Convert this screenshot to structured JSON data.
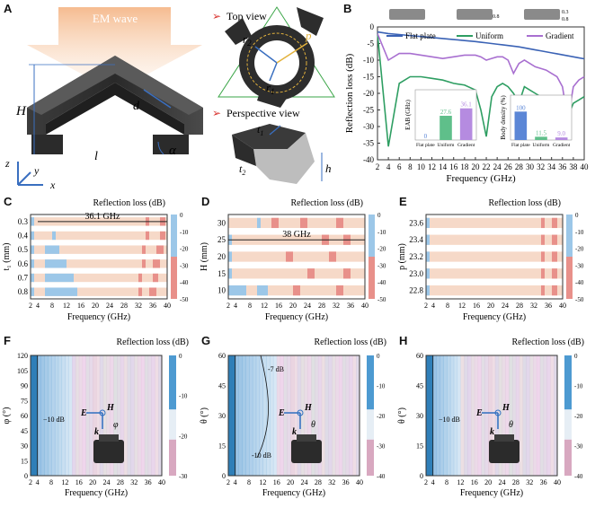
{
  "panels": {
    "A": {
      "letter": "A",
      "wave_label": "EM wave",
      "top_view": "Top view",
      "perspective_view": "Perspective view",
      "sym_H": "H",
      "sym_d": "d",
      "sym_l": "l",
      "sym_c": "c",
      "sym_alpha": "α",
      "sym_r2": "r",
      "sym_r2_sub": "2",
      "sym_r1": "r",
      "sym_r1_sub": "1",
      "sym_p": "p",
      "sym_t1": "t",
      "sym_t1_sub": "1",
      "sym_t2": "t",
      "sym_t2_sub": "2",
      "sym_h": "h",
      "axis_x": "x",
      "axis_y": "y",
      "axis_z": "z"
    },
    "B": {
      "letter": "B",
      "ylabel": "Reflection loss (dB)",
      "xlabel": "Frequency (GHz)",
      "legend": [
        "Flat plate",
        "Uniform",
        "Gradient"
      ],
      "thumb_labels": [
        "0.8",
        "0.3",
        "0.8"
      ],
      "inset1_ylabel": "EAB (GHz)",
      "inset2_ylabel": "Body density (%)",
      "inset_categories": [
        "Flat plate",
        "Uniform",
        "Gradient"
      ]
    },
    "C": {
      "letter": "C",
      "title": "Reflection loss (dB)",
      "ylabel": "t₁ (mm)",
      "xlabel": "Frequency (GHz)",
      "annotation": "36.1 GHz"
    },
    "D": {
      "letter": "D",
      "title": "Reflection loss (dB)",
      "ylabel": "H (mm)",
      "xlabel": "Frequency (GHz)",
      "annotation": "38 GHz"
    },
    "E": {
      "letter": "E",
      "title": "Reflection loss (dB)",
      "ylabel": "p (mm)",
      "xlabel": "Frequency (GHz)"
    },
    "F": {
      "letter": "F",
      "title": "Reflection loss (dB)",
      "ylabel": "φ (°)",
      "xlabel": "Frequency (GHz)",
      "contour": "−10 dB",
      "vec_E": "E",
      "vec_H": "H",
      "vec_k": "k",
      "vec_angle": "φ"
    },
    "G": {
      "letter": "G",
      "title": "Reflection loss (dB)",
      "ylabel": "θ (°)",
      "xlabel": "Frequency (GHz)",
      "contour1": "-7 dB",
      "contour2": "-10 dB",
      "vec_E": "E",
      "vec_H": "H",
      "vec_k": "k",
      "vec_angle": "θ"
    },
    "H": {
      "letter": "H",
      "title": "Reflection loss (dB)",
      "ylabel": "θ (°)",
      "xlabel": "Frequency (GHz)",
      "contour": "−10 dB",
      "vec_E": "E",
      "vec_H": "H",
      "vec_k": "k",
      "vec_angle": "θ"
    }
  },
  "chart_data": [
    {
      "type": "line",
      "panel": "B",
      "title": "",
      "xlabel": "Frequency (GHz)",
      "ylabel": "Reflection loss (dB)",
      "xlim": [
        2,
        40
      ],
      "ylim": [
        -40,
        0
      ],
      "x": [
        2,
        4,
        6,
        8,
        10,
        12,
        14,
        16,
        18,
        20,
        21,
        22,
        23,
        24,
        25,
        26,
        27,
        28,
        29,
        30,
        31,
        32,
        33,
        34,
        35,
        36,
        37,
        38,
        39,
        40
      ],
      "series": [
        {
          "name": "Flat plate",
          "color": "#3a62b5",
          "values": [
            -1.5,
            -2.0,
            -2.3,
            -2.6,
            -2.9,
            -3.2,
            -3.5,
            -3.8,
            -4.1,
            -4.4,
            -4.6,
            -4.8,
            -5.0,
            -5.2,
            -5.4,
            -5.6,
            -5.8,
            -6.0,
            -6.3,
            -6.6,
            -6.9,
            -7.2,
            -7.5,
            -7.8,
            -8.1,
            -8.4,
            -8.7,
            -9.0,
            -9.3,
            -9.6
          ]
        },
        {
          "name": "Uniform",
          "color": "#2e9e62",
          "values": [
            -2,
            -36,
            -17,
            -15,
            -15,
            -15.5,
            -16,
            -17,
            -17.5,
            -19,
            -25,
            -33,
            -21,
            -18,
            -17,
            -18,
            -20,
            -23,
            -18,
            -19,
            -20,
            -21,
            -22,
            -23,
            -25,
            -32,
            -27,
            -23,
            -22,
            -21
          ]
        },
        {
          "name": "Gradient",
          "color": "#a86fd0",
          "values": [
            -2,
            -10,
            -8,
            -8,
            -8.5,
            -9,
            -9.5,
            -9,
            -8.5,
            -8.5,
            -9,
            -10,
            -9.5,
            -9,
            -9,
            -10,
            -14,
            -11,
            -10,
            -11,
            -12,
            -12.5,
            -13,
            -14,
            -15,
            -18,
            -28,
            -18,
            -16,
            -15
          ]
        }
      ],
      "x_ticks": [
        2,
        4,
        6,
        8,
        10,
        12,
        14,
        16,
        18,
        20,
        22,
        24,
        26,
        28,
        30,
        32,
        34,
        36,
        38,
        40
      ],
      "y_ticks": [
        0,
        -5,
        -10,
        -15,
        -20,
        -25,
        -30,
        -35,
        -40
      ]
    },
    {
      "type": "bar",
      "panel": "B-inset-EAB",
      "ylabel": "EAB (GHz)",
      "categories": [
        "Flat plate",
        "Uniform",
        "Gradient"
      ],
      "values": [
        0,
        27.6,
        36.1
      ],
      "value_labels": [
        "0",
        "27.6",
        "36.1"
      ],
      "colors": [
        "#5b86d6",
        "#5fbf8a",
        "#b58be0"
      ],
      "ylim": [
        0,
        45
      ]
    },
    {
      "type": "bar",
      "panel": "B-inset-density",
      "ylabel": "Body density (%)",
      "categories": [
        "Flat plate",
        "Uniform",
        "Gradient"
      ],
      "values": [
        100,
        11.5,
        9.0
      ],
      "value_labels": [
        "100",
        "11.5",
        "9.0"
      ],
      "colors": [
        "#5b86d6",
        "#5fbf8a",
        "#b58be0"
      ],
      "ylim": [
        0,
        120
      ]
    },
    {
      "type": "heatmap",
      "panel": "C",
      "xlabel": "Frequency (GHz)",
      "ylabel": "t1 (mm)",
      "y_categories": [
        "0.3",
        "0.4",
        "0.5",
        "0.6",
        "0.7",
        "0.8"
      ],
      "x_ticks": [
        2,
        4,
        8,
        12,
        16,
        20,
        24,
        28,
        32,
        36,
        40
      ],
      "colorbar_ticks": [
        0,
        -10,
        -20,
        -30,
        -40,
        -50
      ],
      "annotation": {
        "text": "36.1 GHz",
        "from": 4,
        "to": 40,
        "row": "0.3"
      },
      "blue_spans": [
        [
          [
            2,
            3
          ]
        ],
        [
          [
            2,
            3
          ],
          [
            8,
            9
          ]
        ],
        [
          [
            2,
            3
          ],
          [
            6,
            10
          ]
        ],
        [
          [
            2,
            3
          ],
          [
            6,
            12
          ]
        ],
        [
          [
            2,
            3
          ],
          [
            6,
            14
          ]
        ],
        [
          [
            2,
            3
          ],
          [
            6,
            15
          ]
        ]
      ],
      "red_spans": [
        [
          [
            34,
            35
          ],
          [
            38,
            39.5
          ]
        ],
        [
          [
            34,
            35
          ],
          [
            38,
            39.5
          ]
        ],
        [
          [
            33,
            34
          ],
          [
            37,
            39
          ]
        ],
        [
          [
            33,
            34
          ],
          [
            36,
            38
          ]
        ],
        [
          [
            32,
            33
          ],
          [
            36,
            37.5
          ]
        ],
        [
          [
            32,
            33
          ],
          [
            35,
            37
          ]
        ]
      ]
    },
    {
      "type": "heatmap",
      "panel": "D",
      "xlabel": "Frequency (GHz)",
      "ylabel": "H (mm)",
      "y_categories": [
        "30",
        "25",
        "20",
        "15",
        "10"
      ],
      "y_ticks": [
        30,
        25,
        20,
        15,
        10
      ],
      "x_ticks": [
        2,
        4,
        8,
        12,
        16,
        20,
        24,
        28,
        32,
        36,
        40
      ],
      "colorbar_ticks": [
        0,
        -10,
        -20,
        -30,
        -40,
        -50
      ],
      "annotation": {
        "text": "38 GHz",
        "from": 2,
        "to": 40,
        "row": "25"
      },
      "blue_spans": [
        [
          [
            10,
            11
          ]
        ],
        [
          [
            2,
            3
          ]
        ],
        [
          [
            2,
            3
          ]
        ],
        [
          [
            2,
            3
          ]
        ],
        [
          [
            2,
            7
          ],
          [
            10,
            13
          ]
        ]
      ],
      "red_spans": [
        [
          [
            14,
            16
          ],
          [
            22,
            24
          ],
          [
            32,
            34
          ]
        ],
        [
          [
            28,
            30
          ],
          [
            34,
            36
          ]
        ],
        [
          [
            18,
            20
          ],
          [
            30,
            32
          ]
        ],
        [
          [
            24,
            26
          ],
          [
            34,
            36
          ]
        ],
        [
          [
            20,
            22
          ],
          [
            32,
            34
          ]
        ]
      ]
    },
    {
      "type": "heatmap",
      "panel": "E",
      "xlabel": "Frequency (GHz)",
      "ylabel": "p (mm)",
      "y_categories": [
        "23.6",
        "23.4",
        "23.2",
        "23.0",
        "22.8"
      ],
      "x_ticks": [
        2,
        4,
        8,
        12,
        16,
        20,
        24,
        28,
        32,
        36,
        40
      ],
      "colorbar_ticks": [
        0,
        -10,
        -20,
        -30,
        -40,
        -50
      ],
      "blue_spans": [
        [
          [
            2,
            3
          ]
        ],
        [
          [
            2,
            3
          ]
        ],
        [
          [
            2,
            3
          ]
        ],
        [
          [
            2,
            3
          ]
        ],
        [
          [
            2,
            3
          ]
        ]
      ],
      "red_spans": [
        [
          [
            34,
            35
          ],
          [
            37,
            38.5
          ]
        ],
        [
          [
            34,
            35
          ],
          [
            37,
            38.5
          ]
        ],
        [
          [
            34,
            35
          ],
          [
            37,
            38.5
          ]
        ],
        [
          [
            34,
            35
          ],
          [
            37,
            38.5
          ]
        ],
        [
          [
            34,
            35
          ],
          [
            37,
            38.5
          ]
        ]
      ]
    },
    {
      "type": "heatmap",
      "panel": "F",
      "xlabel": "Frequency (GHz)",
      "ylabel": "φ (°)",
      "y_ticks": [
        0,
        15,
        30,
        45,
        60,
        75,
        90,
        105,
        120
      ],
      "ylim": [
        0,
        120
      ],
      "x_ticks": [
        2,
        4,
        8,
        12,
        16,
        20,
        24,
        28,
        32,
        36,
        40
      ],
      "colorbar_ticks": [
        0,
        -10,
        -20,
        -30
      ],
      "contour_label": "−10 dB"
    },
    {
      "type": "heatmap",
      "panel": "G",
      "xlabel": "Frequency (GHz)",
      "ylabel": "θ (°)",
      "y_ticks": [
        0,
        15,
        30,
        45,
        60
      ],
      "ylim": [
        0,
        60
      ],
      "x_ticks": [
        2,
        4,
        8,
        12,
        16,
        20,
        24,
        28,
        32,
        36,
        40
      ],
      "colorbar_ticks": [
        0,
        -10,
        -20,
        -30,
        -40
      ],
      "contour_labels": [
        "-7 dB",
        "-10 dB"
      ]
    },
    {
      "type": "heatmap",
      "panel": "H",
      "xlabel": "Frequency (GHz)",
      "ylabel": "θ (°)",
      "y_ticks": [
        0,
        15,
        30,
        45,
        60
      ],
      "ylim": [
        0,
        60
      ],
      "x_ticks": [
        2,
        4,
        8,
        12,
        16,
        20,
        24,
        28,
        32,
        36,
        40
      ],
      "colorbar_ticks": [
        0,
        -10,
        -20,
        -30,
        -40
      ],
      "contour_label": "−10 dB"
    }
  ]
}
